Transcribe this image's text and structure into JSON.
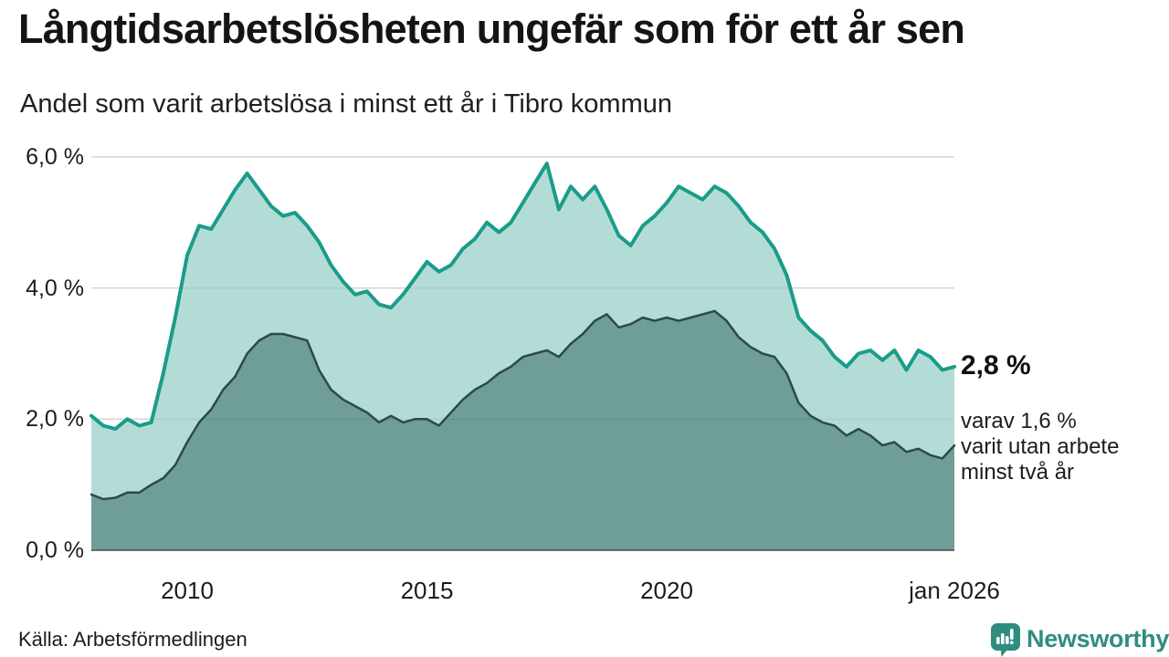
{
  "header": {
    "title": "Långtidsarbetslösheten ungefär som för ett år sen",
    "subtitle": "Andel som varit arbetslösa i minst ett år i Tibro kommun"
  },
  "chart_data": {
    "type": "area",
    "title": "Långtidsarbetslösheten ungefär som för ett år sen",
    "subtitle": "Andel som varit arbetslösa i minst ett år i Tibro kommun",
    "unit": "%",
    "xlim": [
      2008,
      2026
    ],
    "ylim": [
      0,
      6
    ],
    "x_start": 2008,
    "x_step": 0.25,
    "grid": "horizontal",
    "legend_position": "none",
    "yticks": [
      {
        "value": 6,
        "label": "6,0 %"
      },
      {
        "value": 4,
        "label": "4,0 %"
      },
      {
        "value": 2,
        "label": "2,0 %"
      },
      {
        "value": 0,
        "label": "0,0 %"
      }
    ],
    "xticks": [
      {
        "value": 2010,
        "label": "2010"
      },
      {
        "value": 2015,
        "label": "2015"
      },
      {
        "value": 2020,
        "label": "2020"
      },
      {
        "value": 2026,
        "label": "jan 2026"
      }
    ],
    "series": [
      {
        "name": "Andel arbetslösa minst ett år",
        "line_color": "#1a9c8a",
        "fill_color": "#b4dcd6",
        "line_width": 4,
        "end_value_label": "2,8 %",
        "values": [
          2.05,
          1.9,
          1.85,
          2.0,
          1.9,
          1.95,
          2.7,
          3.55,
          4.5,
          4.95,
          4.9,
          5.2,
          5.5,
          5.75,
          5.5,
          5.25,
          5.1,
          5.15,
          4.95,
          4.7,
          4.35,
          4.1,
          3.9,
          3.95,
          3.75,
          3.7,
          3.9,
          4.15,
          4.4,
          4.25,
          4.35,
          4.6,
          4.75,
          5.0,
          4.85,
          5.0,
          5.3,
          5.6,
          5.9,
          5.2,
          5.55,
          5.35,
          5.55,
          5.2,
          4.8,
          4.65,
          4.95,
          5.1,
          5.3,
          5.55,
          5.45,
          5.35,
          5.55,
          5.45,
          5.25,
          5.0,
          4.85,
          4.6,
          4.2,
          3.55,
          3.35,
          3.2,
          2.95,
          2.8,
          3.0,
          3.05,
          2.9,
          3.05,
          2.75,
          3.05,
          2.95,
          2.75,
          2.8
        ]
      },
      {
        "name": "Varav utan arbete minst två år",
        "line_color": "#2b4a49",
        "fill_color": "#6f9e98",
        "line_width": 2.5,
        "end_value_label": "1,6 %",
        "values": [
          0.85,
          0.78,
          0.8,
          0.88,
          0.88,
          1.0,
          1.1,
          1.3,
          1.65,
          1.95,
          2.15,
          2.45,
          2.65,
          3.0,
          3.2,
          3.3,
          3.3,
          3.25,
          3.2,
          2.75,
          2.45,
          2.3,
          2.2,
          2.1,
          1.95,
          2.05,
          1.95,
          2.0,
          2.0,
          1.9,
          2.1,
          2.3,
          2.45,
          2.55,
          2.7,
          2.8,
          2.95,
          3.0,
          3.05,
          2.95,
          3.15,
          3.3,
          3.5,
          3.6,
          3.4,
          3.45,
          3.55,
          3.5,
          3.55,
          3.5,
          3.55,
          3.6,
          3.65,
          3.5,
          3.25,
          3.1,
          3.0,
          2.95,
          2.7,
          2.25,
          2.05,
          1.95,
          1.9,
          1.75,
          1.85,
          1.75,
          1.6,
          1.65,
          1.5,
          1.55,
          1.45,
          1.4,
          1.6
        ]
      }
    ]
  },
  "annotation": {
    "value_label": "2,8 %",
    "detail_lines": [
      "varav 1,6 %",
      "varit utan arbete",
      "minst två år"
    ]
  },
  "footer": {
    "source": "Källa: Arbetsförmedlingen",
    "brand": "Newsworthy"
  },
  "colors": {
    "accent_teal": "#1a9c8a",
    "dark_line": "#2b4a49",
    "light_fill": "#b4dcd6",
    "dark_fill": "#6f9e98",
    "brand_teal": "#2f8d80",
    "grid": "#e1e1e1",
    "axis": "#4a4a4a"
  }
}
